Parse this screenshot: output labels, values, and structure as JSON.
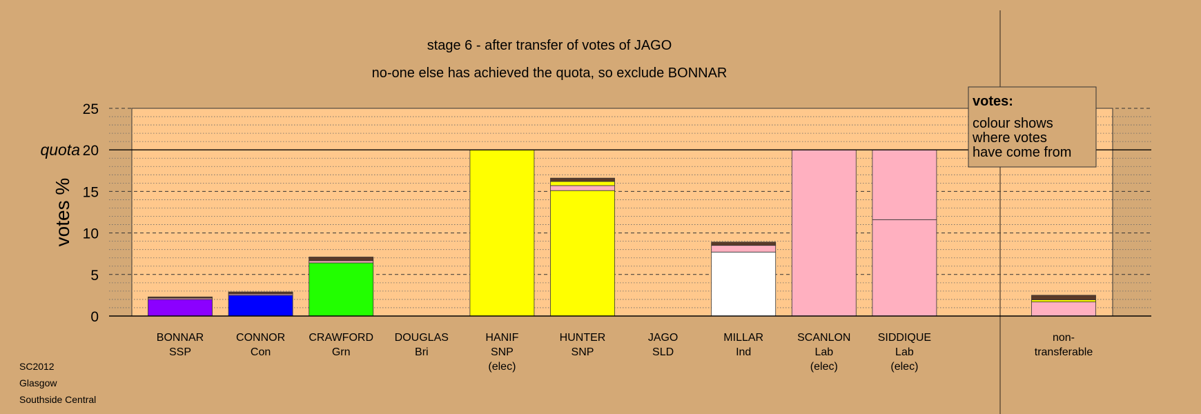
{
  "chart_data": {
    "type": "bar",
    "title": "stage 6 - after transfer of votes of JAGO",
    "subtitle": "no-one else has achieved the quota, so exclude BONNAR",
    "ylabel": "votes %",
    "ylim": [
      0,
      25
    ],
    "yticks": [
      0,
      5,
      10,
      15,
      20,
      25
    ],
    "quota": 20,
    "quota_label": "quota",
    "grid": true,
    "legend": {
      "position": "top-right",
      "title": "votes:",
      "lines": [
        "colour shows",
        "where votes",
        "have come from"
      ]
    },
    "colors": {
      "background": "#D4A976",
      "plot_area": "#FFC88C",
      "SSP": "#8B00FF",
      "Con": "#0000FF",
      "Grn": "#22FF00",
      "SNP": "#FFFF00",
      "Ind": "#FFFFFF",
      "Lab": "#FFB0C0",
      "Bri": "#000080",
      "SLD": "#FFA500",
      "other": "#5A3A28"
    },
    "candidates": [
      {
        "name": "BONNAR",
        "party": "SSP",
        "status": "",
        "total": 2.3,
        "segments": [
          {
            "from": "SSP",
            "value": 2.0
          },
          {
            "from": "Lab",
            "value": 0.15
          },
          {
            "from": "other",
            "value": 0.15
          }
        ]
      },
      {
        "name": "CONNOR",
        "party": "Con",
        "status": "",
        "total": 2.9,
        "segments": [
          {
            "from": "Con",
            "value": 2.5
          },
          {
            "from": "Lab",
            "value": 0.15
          },
          {
            "from": "other",
            "value": 0.25
          }
        ]
      },
      {
        "name": "CRAWFORD",
        "party": "Grn",
        "status": "",
        "total": 7.1,
        "segments": [
          {
            "from": "Grn",
            "value": 6.4
          },
          {
            "from": "Lab",
            "value": 0.25
          },
          {
            "from": "other",
            "value": 0.45
          }
        ]
      },
      {
        "name": "DOUGLAS",
        "party": "Bri",
        "status": "",
        "total": 0,
        "segments": []
      },
      {
        "name": "HANIF",
        "party": "SNP",
        "status": "(elec)",
        "total": 20,
        "segments": [
          {
            "from": "SNP",
            "value": 20
          }
        ]
      },
      {
        "name": "HUNTER",
        "party": "SNP",
        "status": "",
        "total": 16.6,
        "segments": [
          {
            "from": "SNP",
            "value": 15.1
          },
          {
            "from": "Lab",
            "value": 0.6
          },
          {
            "from": "SNP",
            "value": 0.5
          },
          {
            "from": "other",
            "value": 0.4
          }
        ]
      },
      {
        "name": "JAGO",
        "party": "SLD",
        "status": "",
        "total": 0,
        "segments": []
      },
      {
        "name": "MILLAR",
        "party": "Ind",
        "status": "",
        "total": 8.9,
        "segments": [
          {
            "from": "Ind",
            "value": 7.7
          },
          {
            "from": "Lab",
            "value": 0.8
          },
          {
            "from": "other",
            "value": 0.4
          }
        ]
      },
      {
        "name": "SCANLON",
        "party": "Lab",
        "status": "(elec)",
        "total": 20,
        "segments": [
          {
            "from": "Lab",
            "value": 20
          }
        ]
      },
      {
        "name": "SIDDIQUE",
        "party": "Lab",
        "status": "(elec)",
        "total": 20,
        "segments": [
          {
            "from": "Lab",
            "value": 11.6
          },
          {
            "from": "Lab",
            "value": 8.4
          }
        ]
      }
    ],
    "nontransferable": {
      "label_lines": [
        "non-",
        "transferable"
      ],
      "total": 2.5,
      "segments": [
        {
          "from": "Lab",
          "value": 1.7
        },
        {
          "from": "SNP",
          "value": 0.25
        },
        {
          "from": "other",
          "value": 0.55
        }
      ]
    }
  },
  "footer": [
    "SC2012",
    "Glasgow",
    "Southside Central"
  ]
}
